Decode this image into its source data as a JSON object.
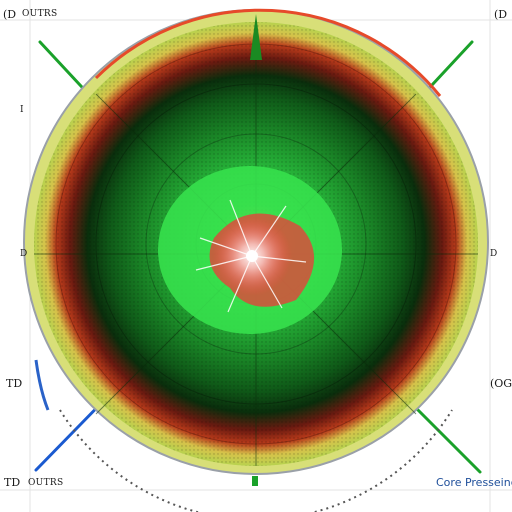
{
  "labels": {
    "top_left_code": "(D",
    "top_left_text": "OUTRS",
    "top_right_code": "(D",
    "mid_left_mark": "I",
    "mid_left_mark2": "D",
    "mid_right_mark": "D",
    "bottom_left_code": "TD",
    "bottom_right_code": "(OG",
    "bottom_left_code2": "TD",
    "bottom_left_text": "OUTRS",
    "brand_text": "Core Presseing"
  },
  "colors": {
    "outer_ring": "#c9d64a",
    "dark_band": "#0c3a10",
    "mid_green": "#1e8a2a",
    "center_green": "#2ee04a",
    "center_red": "#ef3a3a",
    "rim_red": "#e64a2a",
    "diagonal_green": "#1aa12a",
    "accent_blue": "#2a62c8"
  }
}
